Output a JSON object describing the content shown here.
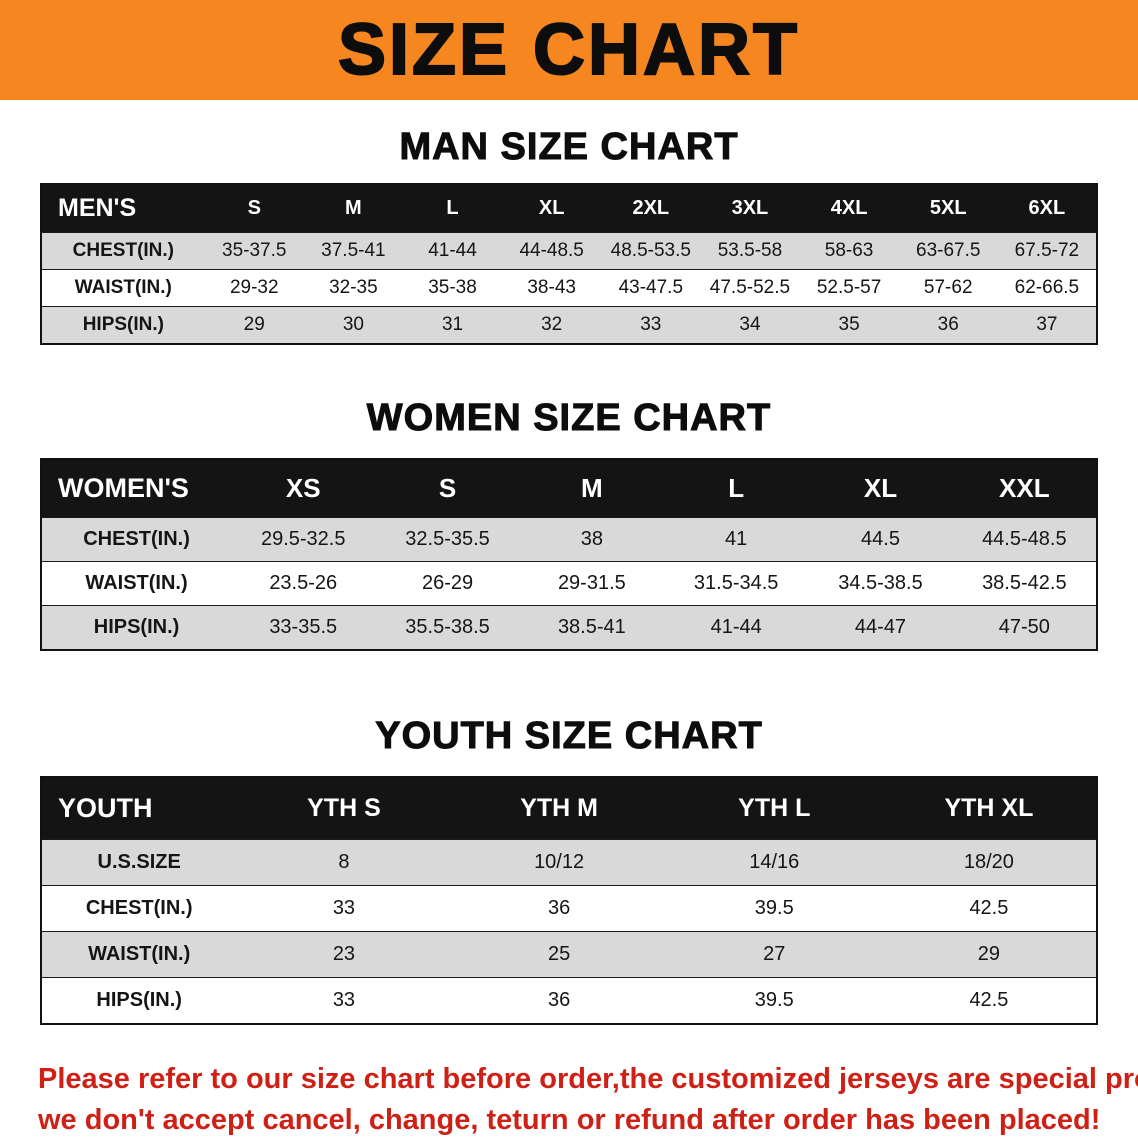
{
  "banner": {
    "title": "SIZE CHART"
  },
  "colors": {
    "banner_bg": "#f6861f",
    "table_header_bg": "#141414",
    "row_alt_gray": "#d9d9d9",
    "note_red": "#cf2016"
  },
  "tables": [
    {
      "heading": "MAN SIZE CHART",
      "header": [
        "MEN'S",
        "S",
        "M",
        "L",
        "XL",
        "2XL",
        "3XL",
        "4XL",
        "5XL",
        "6XL"
      ],
      "rows": [
        [
          "CHEST(IN.)",
          "35-37.5",
          "37.5-41",
          "41-44",
          "44-48.5",
          "48.5-53.5",
          "53.5-58",
          "58-63",
          "63-67.5",
          "67.5-72"
        ],
        [
          "WAIST(IN.)",
          "29-32",
          "32-35",
          "35-38",
          "38-43",
          "43-47.5",
          "47.5-52.5",
          "52.5-57",
          "57-62",
          "62-66.5"
        ],
        [
          "HIPS(IN.)",
          "29",
          "30",
          "31",
          "32",
          "33",
          "34",
          "35",
          "36",
          "37"
        ]
      ]
    },
    {
      "heading": "WOMEN SIZE CHART",
      "header": [
        "WOMEN'S",
        "XS",
        "S",
        "M",
        "L",
        "XL",
        "XXL"
      ],
      "rows": [
        [
          "CHEST(IN.)",
          "29.5-32.5",
          "32.5-35.5",
          "38",
          "41",
          "44.5",
          "44.5-48.5"
        ],
        [
          "WAIST(IN.)",
          "23.5-26",
          "26-29",
          "29-31.5",
          "31.5-34.5",
          "34.5-38.5",
          "38.5-42.5"
        ],
        [
          "HIPS(IN.)",
          "33-35.5",
          "35.5-38.5",
          "38.5-41",
          "41-44",
          "44-47",
          "47-50"
        ]
      ]
    },
    {
      "heading": "YOUTH SIZE CHART",
      "header": [
        "YOUTH",
        "YTH S",
        "YTH M",
        "YTH L",
        "YTH XL"
      ],
      "rows": [
        [
          "U.S.SIZE",
          "8",
          "10/12",
          "14/16",
          "18/20"
        ],
        [
          "CHEST(IN.)",
          "33",
          "36",
          "39.5",
          "42.5"
        ],
        [
          "WAIST(IN.)",
          "23",
          "25",
          "27",
          "29"
        ],
        [
          "HIPS(IN.)",
          "33",
          "36",
          "39.5",
          "42.5"
        ]
      ]
    }
  ],
  "note": {
    "lines": [
      "Please refer to our size chart before order,the customized jerseys are special products,",
      "we don't accept cancel, change, teturn or refund after order has been placed!"
    ]
  }
}
